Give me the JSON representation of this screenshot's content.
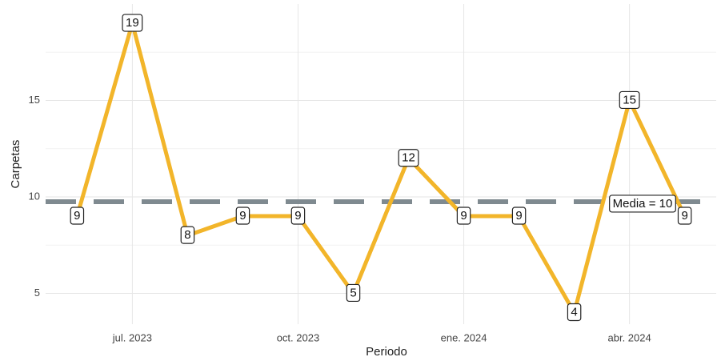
{
  "chart_data": {
    "type": "line",
    "x_label": "Periodo",
    "y_label": "Carpetas",
    "x": [
      "2023-06",
      "2023-07",
      "2023-08",
      "2023-09",
      "2023-10",
      "2023-11",
      "2023-12",
      "2024-01",
      "2024-02",
      "2024-03",
      "2024-04",
      "2024-05"
    ],
    "series": [
      {
        "color": "#f2b52a",
        "values": [
          9,
          19,
          8,
          9,
          9,
          5,
          12,
          9,
          9,
          4,
          15,
          9
        ]
      }
    ],
    "xticks": [
      {
        "value": "2023-07",
        "label": "jul. 2023"
      },
      {
        "value": "2023-10",
        "label": "oct. 2023"
      },
      {
        "value": "2024-01",
        "label": "ene. 2024"
      },
      {
        "value": "2024-04",
        "label": "abr. 2024"
      }
    ],
    "ylim": [
      3.4,
      20
    ],
    "yticks": [
      5,
      10,
      15
    ],
    "minor_yticks": [
      7.5,
      12.5,
      17.5
    ],
    "grid": true,
    "mean_line": {
      "value": 9.75,
      "label": "Media = 10",
      "color": "#7f8a90"
    }
  }
}
